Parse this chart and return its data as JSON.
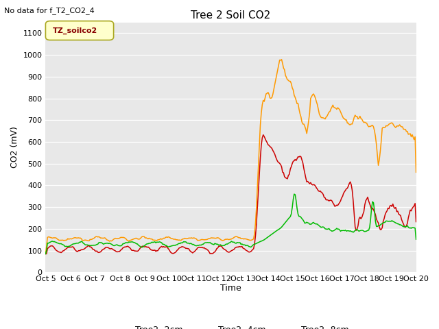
{
  "title": "Tree 2 Soil CO2",
  "subtitle": "No data for f_T2_CO2_4",
  "ylabel": "CO2 (mV)",
  "xlabel": "Time",
  "legend_label": "TZ_soilco2",
  "ylim": [
    0,
    1150
  ],
  "yticks": [
    0,
    100,
    200,
    300,
    400,
    500,
    600,
    700,
    800,
    900,
    1000,
    1100
  ],
  "xtick_labels": [
    "Oct 5",
    "Oct 6",
    "Oct 7",
    "Oct 8",
    "Oct 9",
    "Oct 10",
    "Oct 11",
    "Oct 12",
    "Oct 13",
    "Oct 14",
    "Oct 15",
    "Oct 16",
    "Oct 17",
    "Oct 18",
    "Oct 19",
    "Oct 20"
  ],
  "series": {
    "Tree2 -2cm": {
      "color": "#cc0000"
    },
    "Tree2 -4cm": {
      "color": "#ff9900"
    },
    "Tree2 -8cm": {
      "color": "#00bb00"
    }
  },
  "bg_color": "#e8e8e8",
  "grid_color": "#ffffff",
  "legend_box_face": "#ffffcc",
  "legend_box_edge": "#aaa820",
  "legend_text_color": "#880000",
  "title_fontsize": 11,
  "subtitle_fontsize": 8,
  "axis_fontsize": 9,
  "tick_fontsize": 8
}
